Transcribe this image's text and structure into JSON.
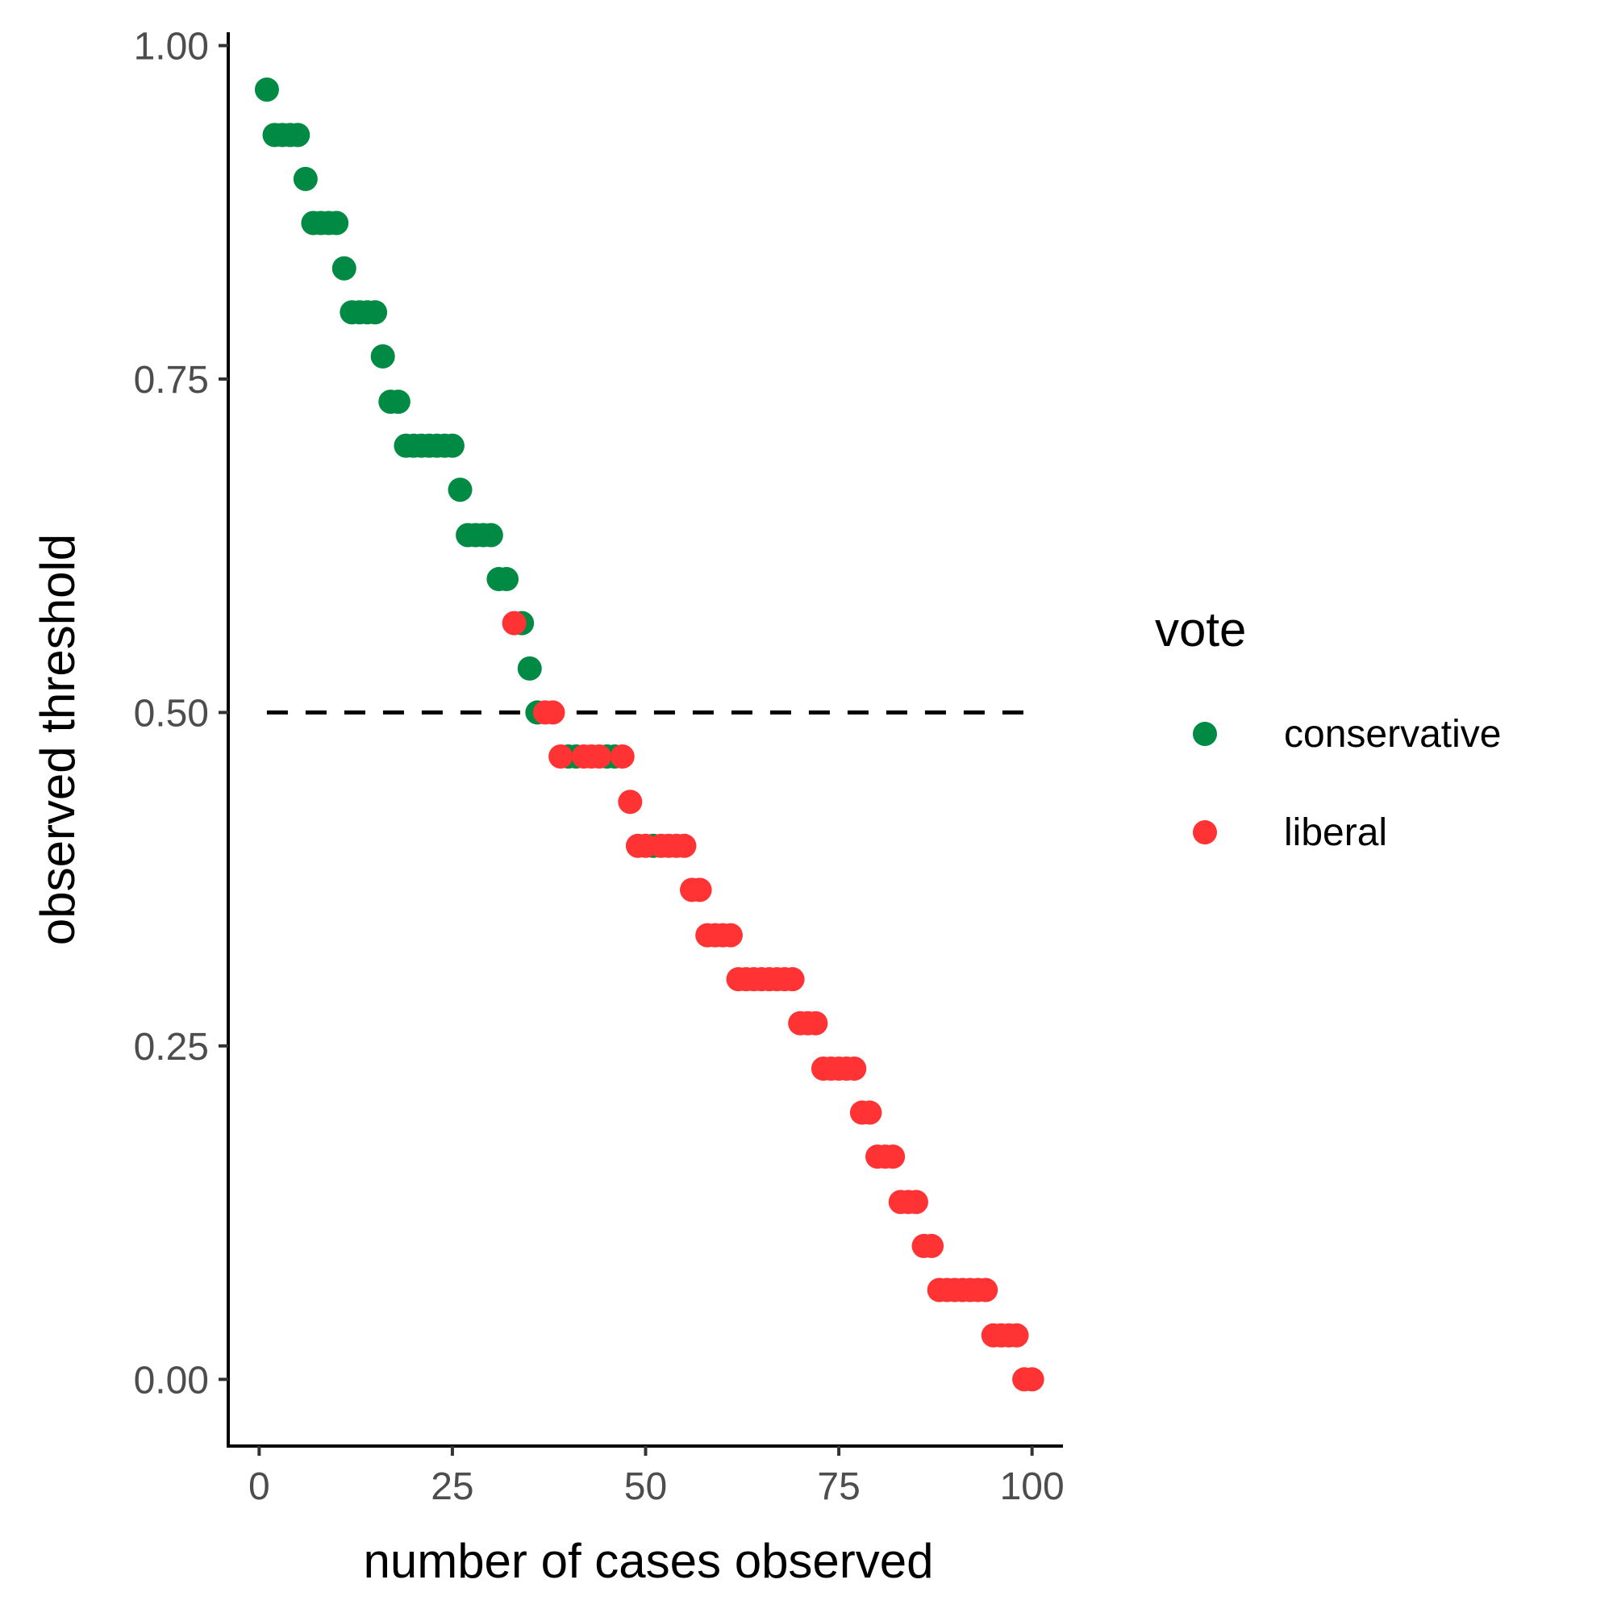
{
  "chart_data": {
    "type": "scatter",
    "title": "",
    "xlabel": "number of cases observed",
    "ylabel": "observed threshold",
    "xlim": [
      -4,
      104
    ],
    "ylim": [
      -0.05,
      1.01
    ],
    "x_ticks": [
      0,
      25,
      50,
      75,
      100
    ],
    "x_tick_labels": [
      "0",
      "25",
      "50",
      "75",
      "100"
    ],
    "y_ticks": [
      0,
      0.25,
      0.5,
      0.75,
      1.0
    ],
    "y_tick_labels": [
      "0.00",
      "0.25",
      "0.50",
      "0.75",
      "1.00"
    ],
    "grid": false,
    "reference_line": {
      "y": 0.5,
      "x_range": [
        1,
        99
      ],
      "style": "dashed"
    },
    "legend": {
      "title": "vote",
      "position": "right",
      "entries": [
        {
          "label": "conservative",
          "color": "#008a44"
        },
        {
          "label": "liberal",
          "color": "#ff3333"
        }
      ]
    },
    "series": [
      {
        "name": "conservative",
        "color": "#008a44",
        "x": [
          1,
          2,
          3,
          4,
          5,
          6,
          7,
          8,
          9,
          10,
          11,
          12,
          13,
          14,
          15,
          16,
          17,
          18,
          19,
          20,
          21,
          22,
          23,
          24,
          25,
          26,
          27,
          28,
          29,
          30,
          31,
          32,
          34,
          35,
          36,
          40,
          41,
          45,
          46,
          51
        ],
        "y": [
          0.967,
          0.933,
          0.933,
          0.933,
          0.933,
          0.9,
          0.867,
          0.867,
          0.867,
          0.867,
          0.833,
          0.8,
          0.8,
          0.8,
          0.8,
          0.767,
          0.733,
          0.733,
          0.7,
          0.7,
          0.7,
          0.7,
          0.7,
          0.7,
          0.7,
          0.667,
          0.633,
          0.633,
          0.633,
          0.633,
          0.6,
          0.6,
          0.567,
          0.533,
          0.5,
          0.467,
          0.467,
          0.467,
          0.467,
          0.4
        ]
      },
      {
        "name": "liberal",
        "color": "#ff3333",
        "x": [
          33,
          37,
          38,
          39,
          42,
          43,
          44,
          47,
          48,
          49,
          50,
          52,
          53,
          54,
          55,
          56,
          57,
          58,
          59,
          60,
          61,
          62,
          63,
          64,
          65,
          66,
          67,
          68,
          69,
          70,
          71,
          72,
          73,
          74,
          75,
          76,
          77,
          78,
          79,
          80,
          81,
          82,
          83,
          84,
          85,
          86,
          87,
          88,
          89,
          90,
          91,
          92,
          93,
          94,
          95,
          96,
          97,
          98,
          99,
          100
        ],
        "y": [
          0.567,
          0.5,
          0.5,
          0.467,
          0.467,
          0.467,
          0.467,
          0.467,
          0.433,
          0.4,
          0.4,
          0.4,
          0.4,
          0.4,
          0.4,
          0.367,
          0.367,
          0.333,
          0.333,
          0.333,
          0.333,
          0.3,
          0.3,
          0.3,
          0.3,
          0.3,
          0.3,
          0.3,
          0.3,
          0.267,
          0.267,
          0.267,
          0.233,
          0.233,
          0.233,
          0.233,
          0.233,
          0.2,
          0.2,
          0.167,
          0.167,
          0.167,
          0.133,
          0.133,
          0.133,
          0.1,
          0.1,
          0.067,
          0.067,
          0.067,
          0.067,
          0.067,
          0.067,
          0.067,
          0.033,
          0.033,
          0.033,
          0.033,
          0,
          0
        ]
      }
    ]
  }
}
